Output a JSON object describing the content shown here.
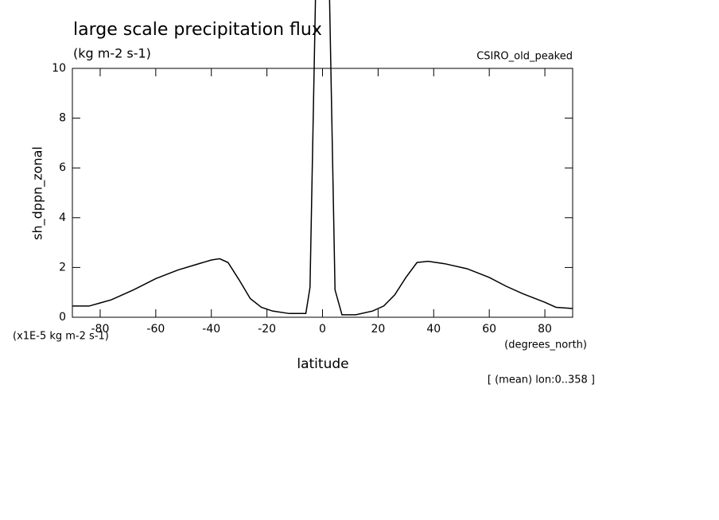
{
  "chart_data": {
    "type": "line",
    "title": "large scale precipitation flux",
    "subtitle": "(kg m-2 s-1)",
    "dataset": "CSIRO_old_peaked",
    "y_label": "sh_dppn_zonal",
    "y_units": "(x1E-5 kg m-2 s-1)",
    "x_label": "latitude",
    "x_units": "(degrees_north)",
    "note": "[ (mean) lon:0..358 ]",
    "x": [
      -90,
      -84,
      -76,
      -68,
      -60,
      -52,
      -46,
      -40,
      -37,
      -34,
      -30,
      -26,
      -22,
      -18,
      -12,
      -6,
      -4.5,
      -2.5,
      2.5,
      4.5,
      7,
      12,
      18,
      22,
      26,
      30,
      34,
      38,
      44,
      52,
      60,
      66,
      72,
      80,
      84,
      90
    ],
    "series": [
      {
        "color": "#000000",
        "values": [
          0.45,
          0.45,
          0.7,
          1.1,
          1.55,
          1.9,
          2.1,
          2.3,
          2.35,
          2.2,
          1.5,
          0.75,
          0.4,
          0.25,
          0.15,
          0.15,
          1.2,
          13,
          13,
          1.1,
          0.1,
          0.1,
          0.25,
          0.45,
          0.9,
          1.6,
          2.2,
          2.25,
          2.15,
          1.95,
          1.6,
          1.25,
          0.95,
          0.6,
          0.4,
          0.35
        ]
      }
    ],
    "xlim": [
      -90,
      90
    ],
    "xticks": [
      -80,
      -60,
      -40,
      -20,
      0,
      20,
      40,
      60,
      80
    ],
    "ylim": [
      0,
      10
    ],
    "yticks": [
      0,
      2,
      4,
      6,
      8,
      10
    ],
    "grid": false
  }
}
